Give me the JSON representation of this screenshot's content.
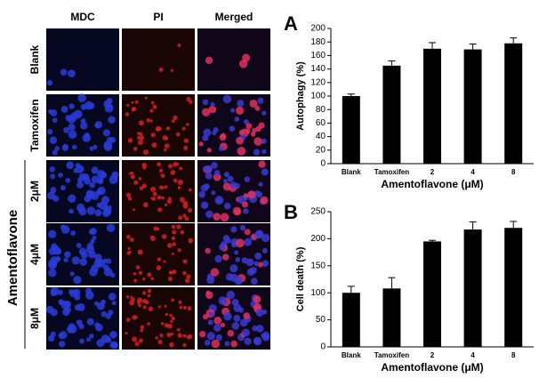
{
  "micrographs": {
    "columns": [
      "MDC",
      "PI",
      "Merged"
    ],
    "rows": [
      "Blank",
      "Tamoxifen",
      "2μM",
      "4μM",
      "8μM"
    ],
    "group_label": "Amentoflavone"
  },
  "chart_data": [
    {
      "type": "bar",
      "panel_label": "A",
      "y_label": "Autophagy (%)",
      "x_label": "Amentoflavone (μM)",
      "categories": [
        "Blank",
        "Tamoxifen",
        "2",
        "4",
        "8"
      ],
      "values": [
        100,
        145,
        170,
        169,
        178
      ],
      "errors": [
        3,
        7,
        9,
        8,
        8
      ],
      "color": "#000000",
      "ylim": [
        0,
        200
      ],
      "yticks": [
        0,
        20,
        40,
        60,
        80,
        100,
        120,
        140,
        160,
        180,
        200
      ]
    },
    {
      "type": "bar",
      "panel_label": "B",
      "y_label": "Cell death (%)",
      "x_label": "Amentoflavone (μM)",
      "categories": [
        "Blank",
        "Tamoxifen",
        "2",
        "4",
        "8"
      ],
      "values": [
        100,
        108,
        195,
        217,
        220
      ],
      "errors": [
        12,
        20,
        2,
        14,
        12
      ],
      "color": "#000000",
      "ylim": [
        0,
        250
      ],
      "yticks": [
        0,
        50,
        100,
        150,
        200,
        250
      ]
    }
  ]
}
